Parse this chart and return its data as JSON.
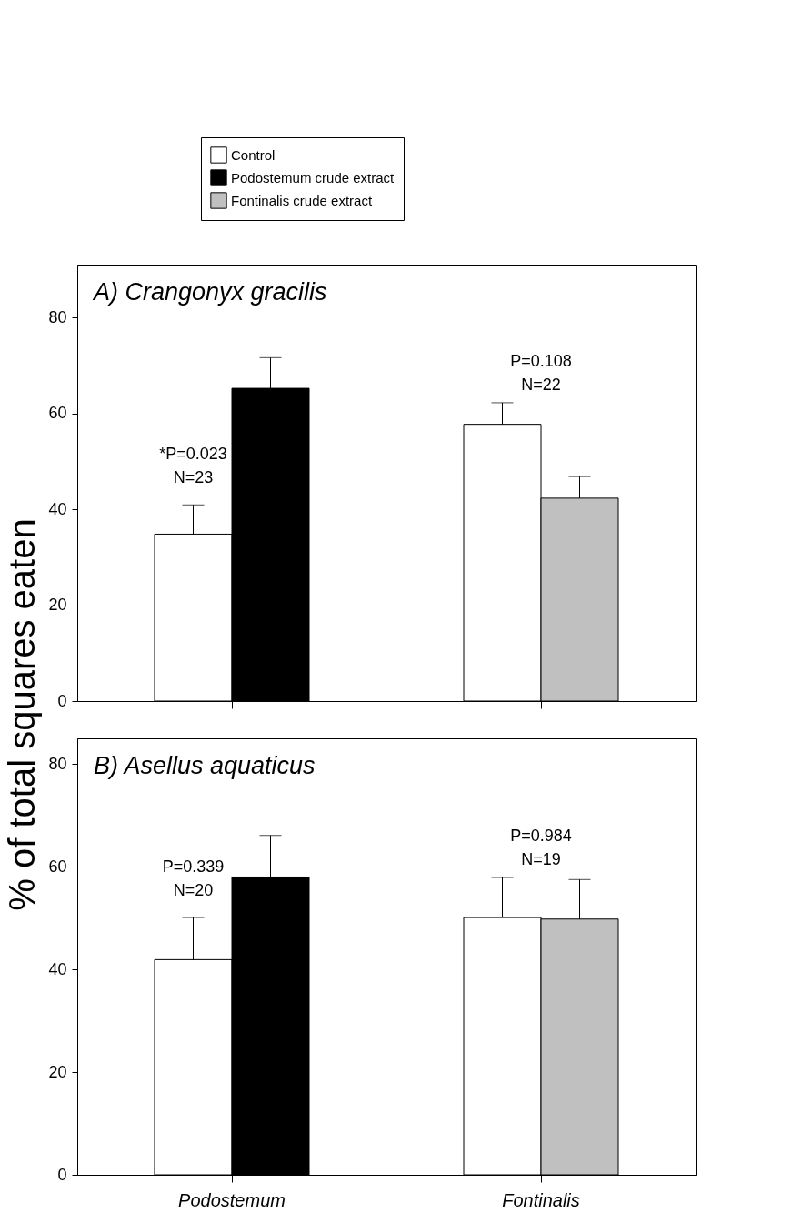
{
  "chart_data": [
    {
      "type": "bar",
      "title": "A) Crangonyx gracilis",
      "ylabel": "% of total squares eaten",
      "categories": [
        "Podostemum",
        "Fontinalis"
      ],
      "series": [
        {
          "name": "Control",
          "color": "#ffffff",
          "values": [
            34.8,
            57.7
          ],
          "errors": [
            [
              34.8,
              40.9
            ],
            [
              57.7,
              62.2
            ]
          ]
        },
        {
          "name": "Podostemum crude extract",
          "color": "#000000",
          "values": [
            65.2,
            null
          ],
          "errors": [
            [
              65.2,
              71.6
            ],
            null
          ]
        },
        {
          "name": "Fontinalis crude extract",
          "color": "#c0c0c0",
          "values": [
            null,
            42.3
          ],
          "errors": [
            null,
            [
              42.3,
              46.8
            ]
          ]
        }
      ],
      "ylim": [
        0,
        91
      ],
      "yticks": [
        0,
        20,
        40,
        60,
        80
      ],
      "legend": "top",
      "tick_labels": "y",
      "grid": false,
      "annotations": [
        "*P=0.023\nN=23",
        "P=0.108\nN=22"
      ]
    },
    {
      "type": "bar",
      "title": "B) Asellus aquaticus",
      "categories": [
        "Podostemum",
        "Fontinalis"
      ],
      "series": [
        {
          "name": "Control",
          "color": "#ffffff",
          "values": [
            41.9,
            50.1
          ],
          "errors": [
            [
              41.9,
              50.1
            ],
            [
              50.1,
              57.9
            ]
          ]
        },
        {
          "name": "Podostemum crude extract",
          "color": "#000000",
          "values": [
            58.0,
            null
          ],
          "errors": [
            [
              58.0,
              66.1
            ],
            null
          ]
        },
        {
          "name": "Fontinalis crude extract",
          "color": "#c0c0c0",
          "values": [
            null,
            49.8
          ],
          "errors": [
            null,
            [
              49.8,
              57.5
            ]
          ]
        }
      ],
      "ylim": [
        0,
        85
      ],
      "yticks": [
        0,
        20,
        40,
        60,
        80
      ],
      "legend": false,
      "grid": false,
      "annotations": [
        "P=0.339\nN=20",
        "P=0.984\nN=19"
      ]
    }
  ]
}
